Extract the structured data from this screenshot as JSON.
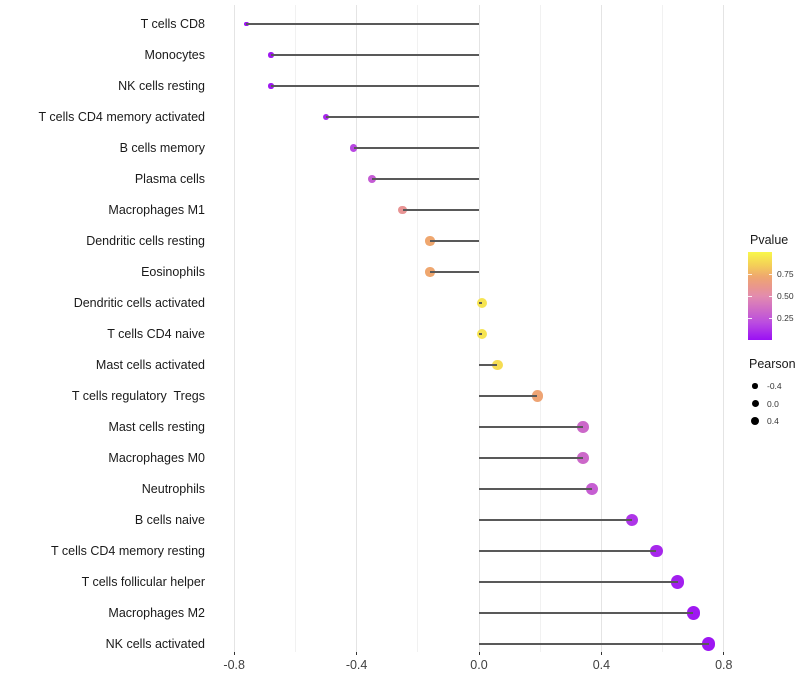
{
  "chart_data": {
    "type": "scatter",
    "variant": "lollipop",
    "title": "",
    "xlabel": "",
    "ylabel": "",
    "x_axis": {
      "tick_labels": [
        "-0.8",
        "-0.4",
        "0.0",
        "0.4",
        "0.8"
      ],
      "tick_values": [
        -0.8,
        -0.4,
        0.0,
        0.4,
        0.8
      ],
      "minor_gridlines": [
        -0.6,
        -0.2,
        0.2,
        0.6
      ],
      "range": [
        -0.87,
        0.84
      ],
      "grid": "vertical-only"
    },
    "points": [
      {
        "category": "T cells CD8",
        "pearson": -0.76,
        "pvalue": 0.01
      },
      {
        "category": "Monocytes",
        "pearson": -0.68,
        "pvalue": 0.03
      },
      {
        "category": "NK cells resting",
        "pearson": -0.68,
        "pvalue": 0.03
      },
      {
        "category": "T cells CD4 memory activated",
        "pearson": -0.5,
        "pvalue": 0.08
      },
      {
        "category": "B cells memory",
        "pearson": -0.41,
        "pvalue": 0.18
      },
      {
        "category": "Plasma cells",
        "pearson": -0.35,
        "pvalue": 0.27
      },
      {
        "category": "Macrophages M1",
        "pearson": -0.25,
        "pvalue": 0.58
      },
      {
        "category": "Dendritic cells resting",
        "pearson": -0.16,
        "pvalue": 0.72
      },
      {
        "category": "Eosinophils",
        "pearson": -0.16,
        "pvalue": 0.72
      },
      {
        "category": "Dendritic cells activated",
        "pearson": 0.01,
        "pvalue": 0.93
      },
      {
        "category": "T cells CD4 naive",
        "pearson": 0.01,
        "pvalue": 0.93
      },
      {
        "category": "Mast cells activated",
        "pearson": 0.06,
        "pvalue": 0.9
      },
      {
        "category": "T cells regulatory  Tregs",
        "pearson": 0.19,
        "pvalue": 0.7
      },
      {
        "category": "Mast cells resting",
        "pearson": 0.34,
        "pvalue": 0.33
      },
      {
        "category": "Macrophages M0",
        "pearson": 0.34,
        "pvalue": 0.33
      },
      {
        "category": "Neutrophils",
        "pearson": 0.37,
        "pvalue": 0.28
      },
      {
        "category": "B cells naive",
        "pearson": 0.5,
        "pvalue": 0.12
      },
      {
        "category": "T cells CD4 memory resting",
        "pearson": 0.58,
        "pvalue": 0.08
      },
      {
        "category": "T cells follicular helper",
        "pearson": 0.65,
        "pvalue": 0.05
      },
      {
        "category": "Macrophages M2",
        "pearson": 0.7,
        "pvalue": 0.03
      },
      {
        "category": "NK cells activated",
        "pearson": 0.75,
        "pvalue": 0.02
      }
    ],
    "legend": {
      "position": "right",
      "pvalue": {
        "title": "Pvalue",
        "tick_labels": [
          "0.75",
          "0.50",
          "0.25"
        ],
        "tick_values": [
          0.75,
          0.5,
          0.25
        ],
        "range": [
          0,
          1
        ]
      },
      "pearson": {
        "title": "Pearson",
        "entries": [
          {
            "label": "-0.4",
            "value": -0.4
          },
          {
            "label": "0.0",
            "value": 0.0
          },
          {
            "label": "0.4",
            "value": 0.4
          }
        ]
      }
    },
    "colors": {
      "stem": "#595959",
      "size_legend_dot": "#000000",
      "gradient_stops": [
        [
          0.0,
          "#9a10f4"
        ],
        [
          0.2,
          "#bb4de0"
        ],
        [
          0.35,
          "#cf6cc6"
        ],
        [
          0.5,
          "#e38cae"
        ],
        [
          0.6,
          "#e9968e"
        ],
        [
          0.72,
          "#efa76f"
        ],
        [
          0.85,
          "#f4cf58"
        ],
        [
          1.0,
          "#f8f74a"
        ]
      ]
    }
  }
}
